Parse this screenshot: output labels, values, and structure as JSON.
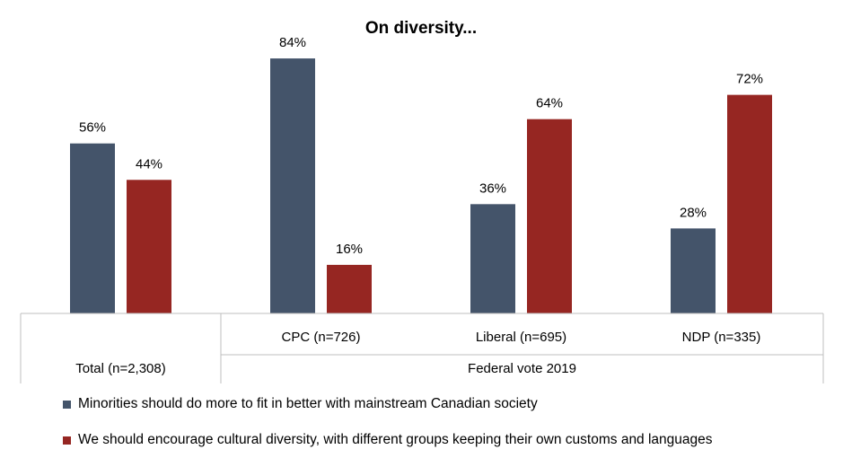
{
  "chart_data": {
    "type": "bar",
    "title": "On diversity...",
    "categories": [
      "Total (n=2,308)",
      "CPC (n=726)",
      "Liberal (n=695)",
      "NDP (n=335)"
    ],
    "groups": [
      {
        "label": "",
        "categories": [
          "Total (n=2,308)"
        ]
      },
      {
        "label": "Federal vote 2019",
        "categories": [
          "CPC (n=726)",
          "Liberal (n=695)",
          "NDP (n=335)"
        ]
      }
    ],
    "series": [
      {
        "name": "Minorities should do more to fit in better with mainstream Canadian society",
        "values": [
          56,
          84,
          36,
          28
        ],
        "color": "#44546A"
      },
      {
        "name": "We should encourage cultural diversity, with different groups keeping their own customs and languages",
        "values": [
          44,
          16,
          64,
          72
        ],
        "color": "#962622"
      }
    ],
    "value_suffix": "%",
    "ylim": [
      0,
      100
    ],
    "grid": false,
    "legend_position": "bottom",
    "xlabel": "",
    "ylabel": ""
  }
}
